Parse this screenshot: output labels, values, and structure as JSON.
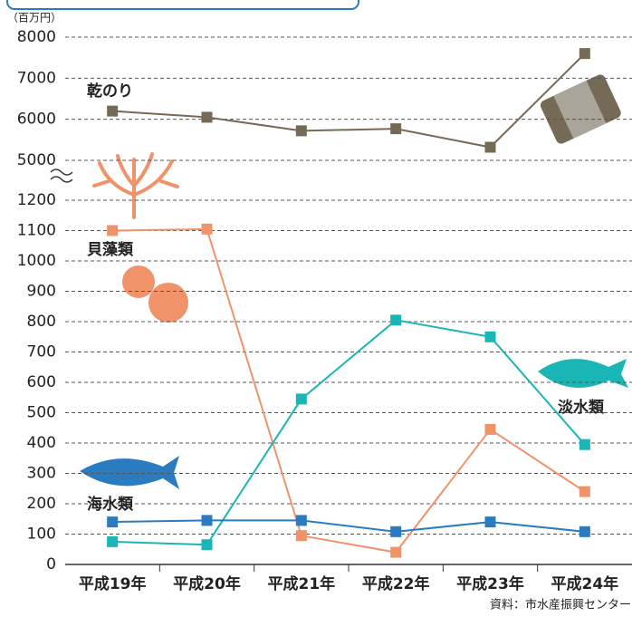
{
  "chart_data": [
    {
      "type": "line",
      "unit": "（百万円）",
      "series": [
        {
          "name": "乾のり",
          "color": "#756a55",
          "values": [
            6200,
            6050,
            5720,
            5770,
            5320,
            7600
          ]
        }
      ],
      "ylim": [
        5000,
        8000
      ],
      "yticks": [
        5000,
        6000,
        7000,
        8000
      ],
      "grid": true
    },
    {
      "type": "line",
      "source": "資料：市水産振興センター",
      "categories": [
        "平成19年",
        "平成20年",
        "平成21年",
        "平成22年",
        "平成23年",
        "平成24年"
      ],
      "series": [
        {
          "name": "貝藻類",
          "color": "#f0936a",
          "values": [
            1100,
            1105,
            95,
            40,
            445,
            240
          ]
        },
        {
          "name": "淡水類",
          "color": "#1ab5b5",
          "values": [
            75,
            65,
            545,
            805,
            750,
            395
          ]
        },
        {
          "name": "海水類",
          "color": "#2a7bc0",
          "values": [
            140,
            145,
            145,
            108,
            140,
            108
          ]
        }
      ],
      "ylim": [
        0,
        1200
      ],
      "yticks": [
        0,
        100,
        200,
        300,
        400,
        500,
        600,
        700,
        800,
        900,
        1000,
        1100,
        1200
      ],
      "grid": true
    }
  ]
}
